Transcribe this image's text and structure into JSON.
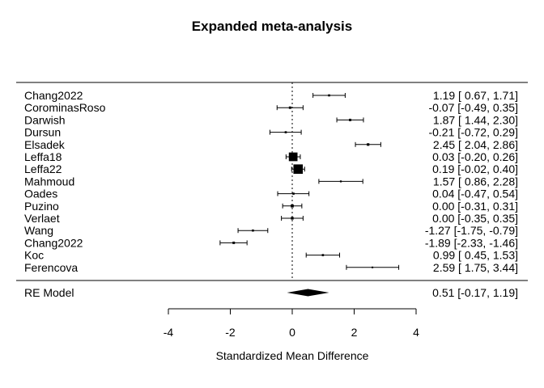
{
  "chart_data": {
    "type": "forest",
    "title": "Expanded meta-analysis",
    "xlabel": "Standardized Mean Difference",
    "xlim": [
      -4,
      4
    ],
    "xticks": [
      -4,
      -2,
      0,
      2,
      4
    ],
    "xtick_labels": [
      "-4",
      "-2",
      "0",
      "2",
      "4"
    ],
    "reference_line": 0,
    "studies": [
      {
        "label": "Chang2022",
        "est": 1.19,
        "lo": 0.67,
        "hi": 1.71,
        "ci_text": "1.19 [ 0.67,  1.71]",
        "weight": 1.0
      },
      {
        "label": "CorominasRoso",
        "est": -0.07,
        "lo": -0.49,
        "hi": 0.35,
        "ci_text": "-0.07 [-0.49,  0.35]",
        "weight": 1.2
      },
      {
        "label": "Darwish",
        "est": 1.87,
        "lo": 1.44,
        "hi": 2.3,
        "ci_text": "1.87 [ 1.44,  2.30]",
        "weight": 1.2
      },
      {
        "label": "Dursun",
        "est": -0.21,
        "lo": -0.72,
        "hi": 0.29,
        "ci_text": "-0.21 [-0.72,  0.29]",
        "weight": 1.0
      },
      {
        "label": "Elsadek",
        "est": 2.45,
        "lo": 2.04,
        "hi": 2.86,
        "ci_text": "2.45 [ 2.04,  2.86]",
        "weight": 1.3
      },
      {
        "label": "Leffa18",
        "est": 0.03,
        "lo": -0.2,
        "hi": 0.26,
        "ci_text": "0.03 [-0.20,  0.26]",
        "weight": 5.5
      },
      {
        "label": "Leffa22",
        "est": 0.19,
        "lo": -0.02,
        "hi": 0.4,
        "ci_text": "0.19 [-0.02,  0.40]",
        "weight": 6.0
      },
      {
        "label": "Mahmoud",
        "est": 1.57,
        "lo": 0.86,
        "hi": 2.28,
        "ci_text": "1.57 [ 0.86,  2.28]",
        "weight": 0.8
      },
      {
        "label": "Oades",
        "est": 0.04,
        "lo": -0.47,
        "hi": 0.54,
        "ci_text": "0.04 [-0.47,  0.54]",
        "weight": 1.0
      },
      {
        "label": "Puzino",
        "est": 0.0,
        "lo": -0.31,
        "hi": 0.31,
        "ci_text": "0.00 [-0.31,  0.31]",
        "weight": 1.6
      },
      {
        "label": "Verlaet",
        "est": 0.0,
        "lo": -0.35,
        "hi": 0.35,
        "ci_text": "0.00 [-0.35,  0.35]",
        "weight": 1.4
      },
      {
        "label": "Wang",
        "est": -1.27,
        "lo": -1.75,
        "hi": -0.79,
        "ci_text": "-1.27 [-1.75, -0.79]",
        "weight": 1.0
      },
      {
        "label": "Chang2022",
        "est": -1.89,
        "lo": -2.33,
        "hi": -1.46,
        "ci_text": "-1.89 [-2.33, -1.46]",
        "weight": 1.2
      },
      {
        "label": "Koc",
        "est": 0.99,
        "lo": 0.45,
        "hi": 1.53,
        "ci_text": "0.99 [ 0.45,  1.53]",
        "weight": 1.0
      },
      {
        "label": "Ferencova",
        "est": 2.59,
        "lo": 1.75,
        "hi": 3.44,
        "ci_text": "2.59 [ 1.75,  3.44]",
        "weight": 0.7
      }
    ],
    "summary": {
      "label": "RE Model",
      "est": 0.51,
      "lo": -0.17,
      "hi": 1.19,
      "ci_text": "0.51 [-0.17,  1.19]"
    }
  }
}
